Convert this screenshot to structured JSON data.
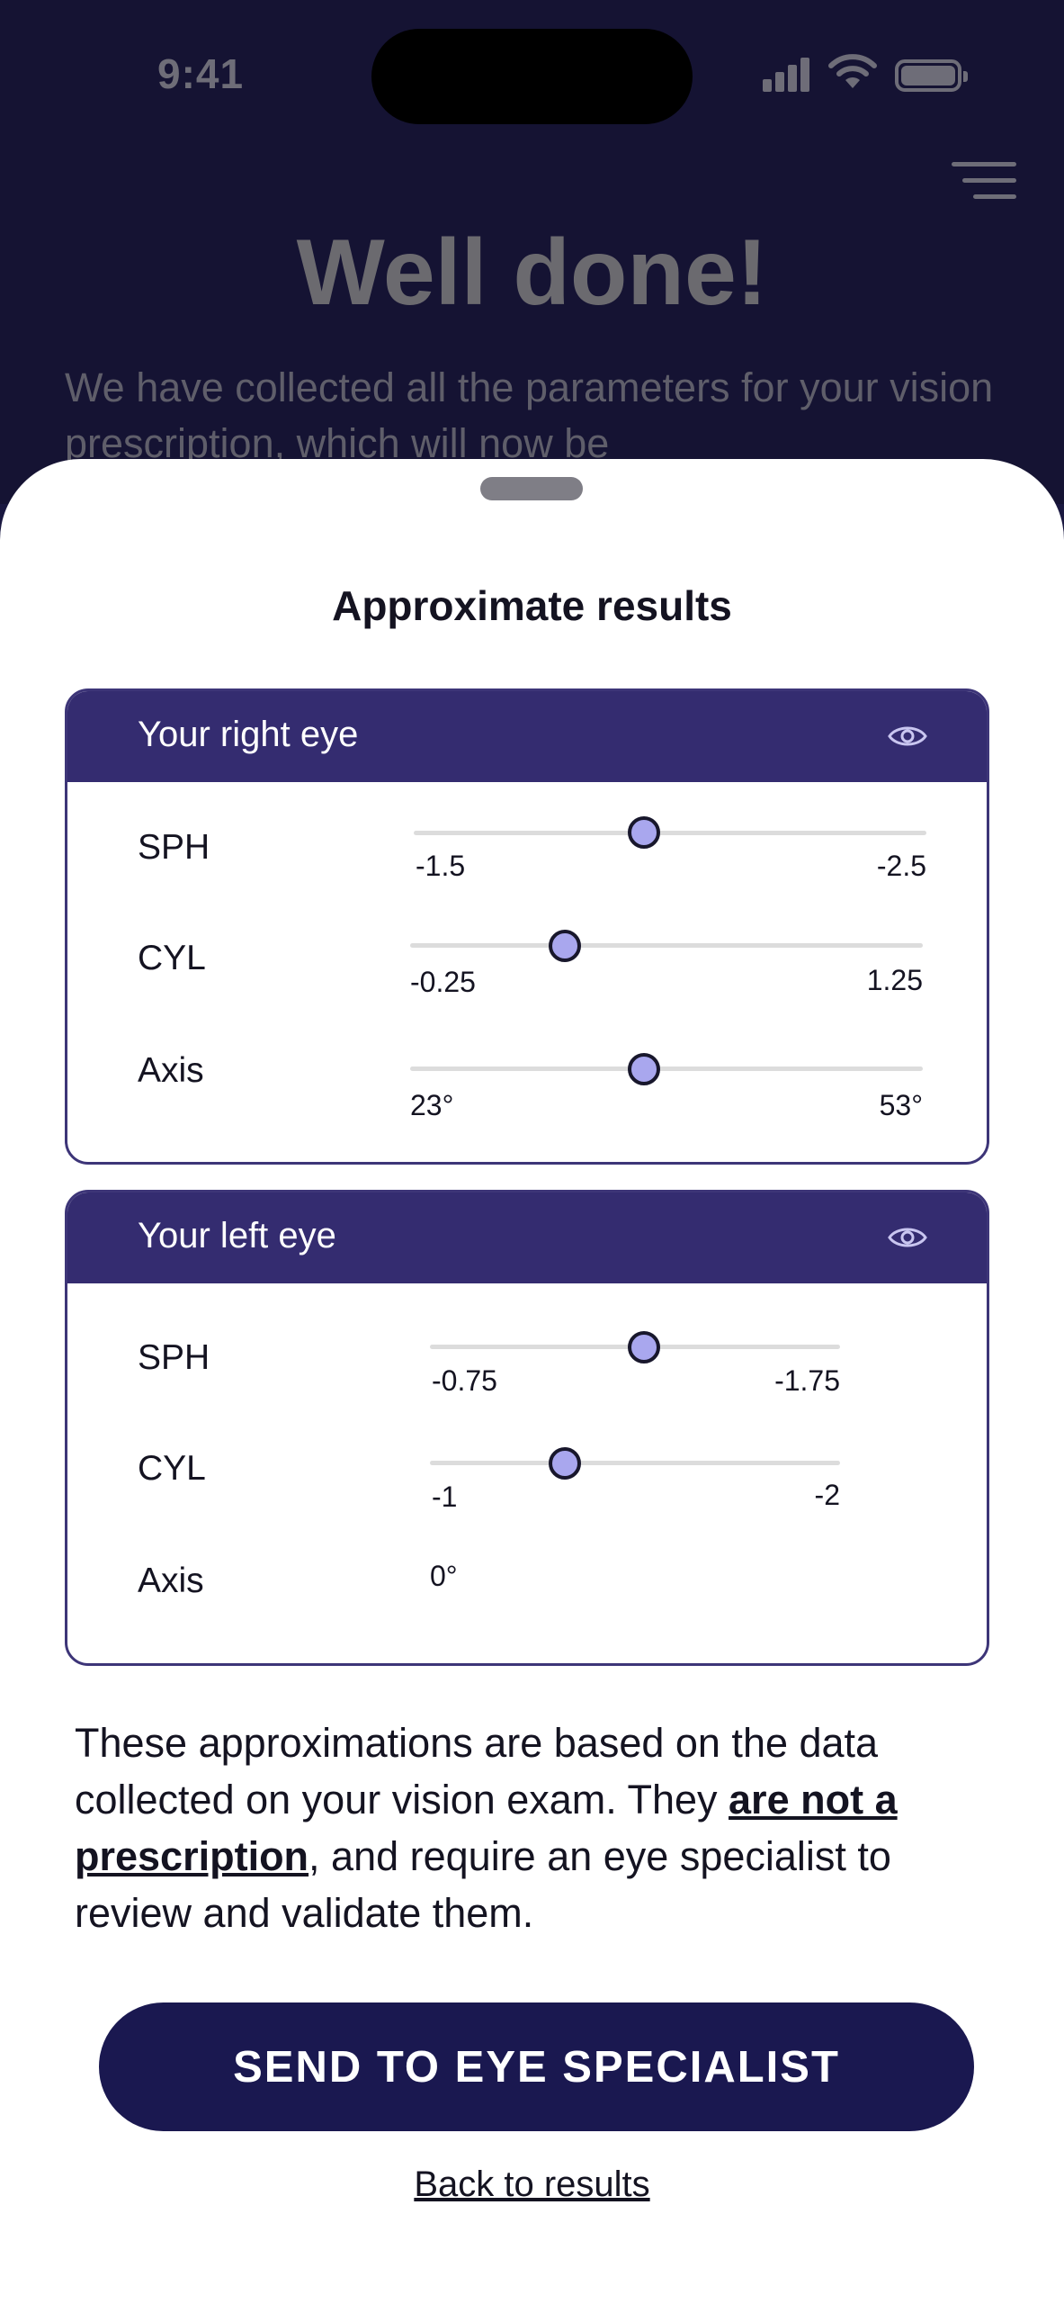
{
  "status_bar": {
    "time": "9:41"
  },
  "background": {
    "title": "Well done!",
    "text": "We have collected all the parameters for your vision prescription, which will now be"
  },
  "sheet": {
    "title": "Approximate results",
    "right_eye": {
      "title": "Your right eye",
      "sph": {
        "label": "SPH",
        "min": "-1.5",
        "max": "-2.5",
        "level": 0.45
      },
      "cyl": {
        "label": "CYL",
        "min": "-0.25",
        "max": "1.25",
        "level": 0.3
      },
      "axis": {
        "label": "Axis",
        "min": "23°",
        "max": "53°",
        "level": 0.45
      }
    },
    "left_eye": {
      "title": "Your left eye",
      "sph": {
        "label": "SPH",
        "min": "-0.75",
        "max": "-1.75",
        "level": 0.52
      },
      "cyl": {
        "label": "CYL",
        "min": "-1",
        "max": "-2",
        "level": 0.33
      },
      "axis": {
        "label": "Axis",
        "value": "0°"
      }
    },
    "note": {
      "part1": "These approximations are based on the data collected on your vision exam. They ",
      "emphasis": "are not a prescription",
      "part2": ", and require an eye specialist to review and validate them."
    },
    "cta_label": "SEND TO EYE SPECIALIST",
    "back_label": "Back to results"
  },
  "colors": {
    "accent": "#342c70",
    "button": "#1a1850",
    "knob": "#a9a7ee"
  },
  "icons": [
    "signal-icon",
    "wifi-icon",
    "battery-icon",
    "menu-icon",
    "eye-icon"
  ]
}
